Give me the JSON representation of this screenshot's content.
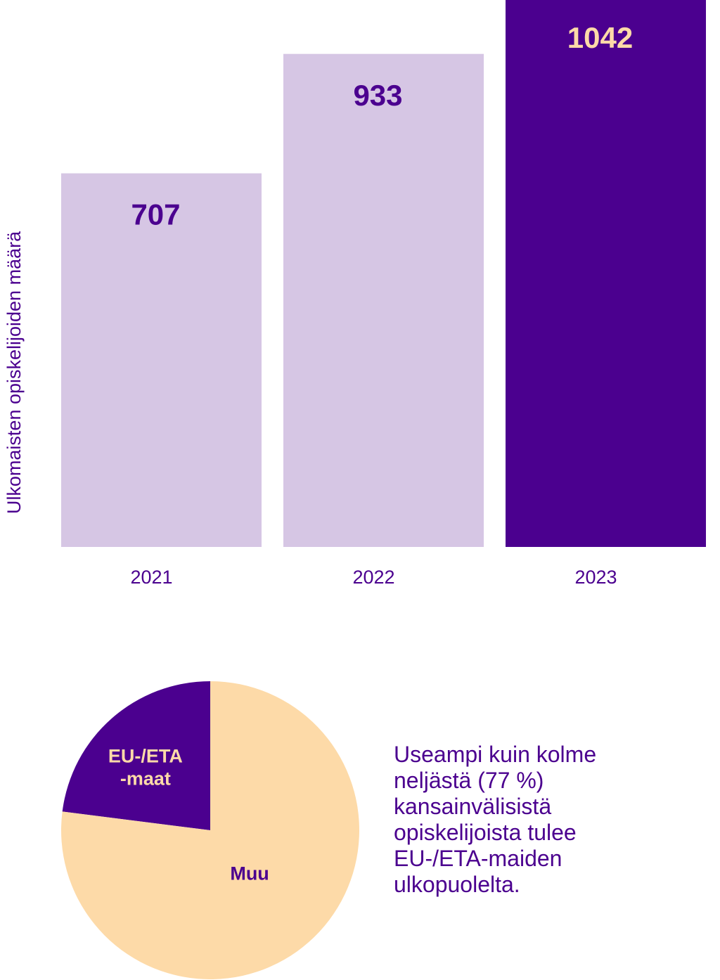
{
  "chart_data": [
    {
      "type": "bar",
      "y_label": "Ulkomaisten opiskelijoiden määrä",
      "categories": [
        "2021",
        "2022",
        "2023"
      ],
      "values": [
        707,
        933,
        1042
      ],
      "colors": [
        "#d6c6e4",
        "#d6c6e4",
        "#4b008f"
      ],
      "label_colors": [
        "#4b008f",
        "#4b008f",
        "#fddaa8"
      ],
      "ylim": [
        0,
        1035
      ]
    },
    {
      "type": "pie",
      "categories": [
        "EU-/ETA -maat",
        "Muu"
      ],
      "values": [
        23,
        77
      ],
      "colors": [
        "#4b008f",
        "#fddaa8"
      ],
      "label_colors": [
        "#fddaa8",
        "#4b008f"
      ],
      "annotation": "Useampi kuin kolme neljästä (77 %) kansainvälisistä opiskelijoista tulee EU-/ETA-maiden ulkopuolelta."
    }
  ]
}
